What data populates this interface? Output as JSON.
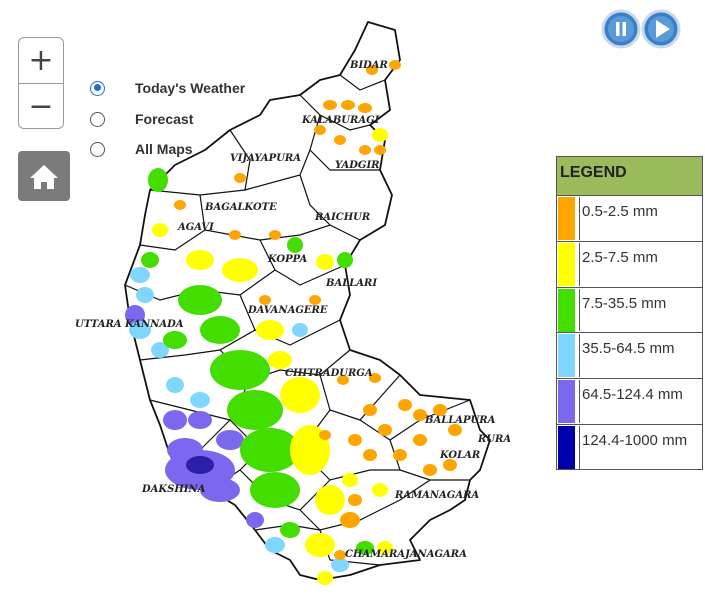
{
  "zoom": {
    "in_label": "+",
    "out_label": "−"
  },
  "home": {
    "icon": "home-icon"
  },
  "options": [
    {
      "label": "Today's Weather",
      "checked": true
    },
    {
      "label": "Forecast",
      "checked": false
    },
    {
      "label": "All Maps",
      "checked": false
    }
  ],
  "player": {
    "pause_icon": "pause-icon",
    "play_icon": "play-icon"
  },
  "legend": {
    "title": "LEGEND",
    "items": [
      {
        "label": "0.5-2.5 mm",
        "color": "#ffa500"
      },
      {
        "label": "2.5-7.5 mm",
        "color": "#ffff00"
      },
      {
        "label": "7.5-35.5 mm",
        "color": "#44dd00"
      },
      {
        "label": "35.5-64.5 mm",
        "color": "#7fd6ff"
      },
      {
        "label": "64.5-124.4 mm",
        "color": "#7b68ee"
      },
      {
        "label": "124.4-1000 mm",
        "color": "#0000aa"
      }
    ]
  },
  "districts": [
    "BIDAR",
    "KALABURAGI",
    "YADGIR",
    "VIJAYAPURA",
    "RAICHUR",
    "BAGALKOTE",
    "BELAGAVI",
    "KOPPAL",
    "BALLARI",
    "UTTARA KANNADA",
    "DAVANAGERE",
    "CHITRADURGA",
    "CHIKKABALLAPURA",
    "BENGALURU RURAL",
    "KOLAR",
    "DAKSHINA KANNADA",
    "RAMANAGARA",
    "CHAMARAJANAGARA"
  ],
  "district_labels": {
    "bidar": "BIDAR",
    "kalaburagi": "KALABURAGI",
    "yadgir": "YADGIR",
    "vijayapura": "VIJAYAPURA",
    "bagalkote": "BAGALKOTE",
    "raichur": "RAICHUR",
    "belagavi": "AGAVI",
    "koppal": "KOPPA",
    "ballari": "BALLARI",
    "uttara": "UTTARA KANNADA",
    "davanagere": "DAVANAGERE",
    "chitradurga": "CHITRADURGA",
    "chikkaballapura": "BALLAPURA",
    "bangalore_rural": "RURAL",
    "kolar": "KOLAR",
    "dakshina": "DAKSHINA",
    "ramanagara": "RAMANAGARA",
    "chamarajanagara": "CHAMARAJANAGARA"
  }
}
